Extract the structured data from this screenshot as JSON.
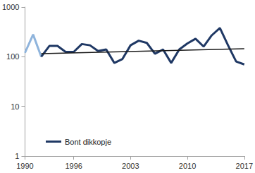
{
  "chart_data": {
    "type": "line",
    "x": [
      1990,
      1991,
      1992,
      1993,
      1994,
      1995,
      1996,
      1997,
      1998,
      1999,
      2000,
      2001,
      2002,
      2003,
      2004,
      2005,
      2006,
      2007,
      2008,
      2009,
      2010,
      2011,
      2012,
      2013,
      2014,
      2015,
      2016,
      2017
    ],
    "series": [
      {
        "color": "#8fb4dc",
        "values": [
          120,
          280,
          100,
          null,
          null,
          null,
          null,
          null,
          null,
          null,
          null,
          null,
          null,
          null,
          null,
          null,
          null,
          null,
          null,
          null,
          null,
          null,
          null,
          null,
          null,
          null,
          null,
          null
        ]
      },
      {
        "name": "Bont dikkopje",
        "color": "#1f3864",
        "values": [
          null,
          null,
          100,
          165,
          165,
          125,
          125,
          180,
          170,
          130,
          140,
          75,
          90,
          170,
          210,
          190,
          115,
          140,
          75,
          140,
          185,
          230,
          160,
          270,
          380,
          170,
          80,
          70
        ]
      },
      {
        "color": "#1a1a1a",
        "values": [
          null,
          null,
          115,
          null,
          null,
          null,
          null,
          null,
          null,
          null,
          null,
          null,
          null,
          null,
          null,
          null,
          null,
          null,
          null,
          null,
          null,
          null,
          null,
          null,
          null,
          null,
          null,
          145
        ]
      }
    ],
    "xlim": [
      1990,
      2017
    ],
    "xticks": [
      1990,
      1996,
      2003,
      2010,
      2017
    ],
    "ylim": [
      1,
      1000
    ],
    "yticks": [
      1,
      10,
      100,
      1000
    ],
    "log": "y",
    "grid": false,
    "legend": "lower left"
  }
}
